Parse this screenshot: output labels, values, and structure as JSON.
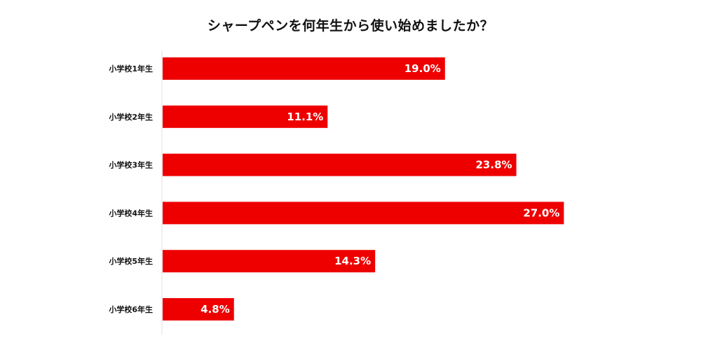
{
  "chart_data": {
    "type": "bar",
    "orientation": "horizontal",
    "title": "シャープペンを何年生から使い始めましたか？",
    "categories": [
      "小学校1年生",
      "小学校2年生",
      "小学校3年生",
      "小学校4年生",
      "小学校5年生",
      "小学校6年生"
    ],
    "values": [
      19.0,
      11.1,
      23.8,
      27.0,
      14.3,
      4.8
    ],
    "value_labels": [
      "19.0%",
      "11.1%",
      "23.8%",
      "27.0%",
      "14.3%",
      "4.8%"
    ],
    "unit": "%",
    "bar_color": "#ee0000",
    "grid": false,
    "legend": "none"
  }
}
